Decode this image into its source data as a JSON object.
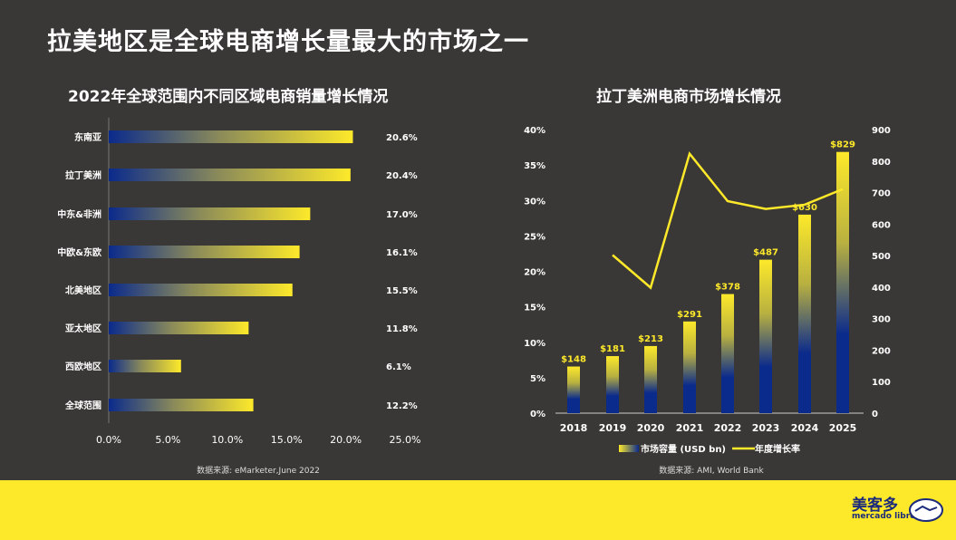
{
  "page_title": "拉美地区是全球电商增长量最大的市场之一",
  "logo": {
    "cn": "美客多",
    "en": "mercado libre"
  },
  "colors": {
    "background": "#3a3836",
    "accent_yellow": "#fde92a",
    "bar_blue": "#0a2a8c",
    "footer": "#fde92a"
  },
  "chart_data": [
    {
      "type": "bar",
      "orientation": "horizontal",
      "title": "2022年全球范围内不同区域电商销量增长情况",
      "categories": [
        "东南亚",
        "拉丁美洲",
        "中东&非洲",
        "中欧&东欧",
        "北美地区",
        "亚太地区",
        "西欧地区",
        "全球范围"
      ],
      "values": [
        20.6,
        20.4,
        17.0,
        16.1,
        15.5,
        11.8,
        6.1,
        12.2
      ],
      "value_labels": [
        "20.6%",
        "20.4%",
        "17.0%",
        "16.1%",
        "15.5%",
        "11.8%",
        "6.1%",
        "12.2%"
      ],
      "xlim": [
        0,
        25
      ],
      "xticks": [
        "0.0%",
        "5.0%",
        "10.0%",
        "15.0%",
        "20.0%",
        "25.0%"
      ],
      "source": "数据来源: eMarketer,June 2022"
    },
    {
      "type": "bar+line",
      "title": "拉丁美洲电商市场增长情况",
      "categories": [
        "2018",
        "2019",
        "2020",
        "2021",
        "2022",
        "2023",
        "2024",
        "2025"
      ],
      "series": [
        {
          "name": "市场容量 (USD bn)",
          "type": "bar",
          "axis": "right",
          "values": [
            148,
            181,
            213,
            291,
            378,
            487,
            630,
            829
          ],
          "labels": [
            "$148",
            "$181",
            "$213",
            "$291",
            "$378",
            "$487",
            "$630",
            "$829"
          ]
        },
        {
          "name": "年度增长率",
          "type": "line",
          "axis": "left",
          "values": [
            null,
            22.3,
            17.7,
            36.6,
            29.9,
            28.8,
            29.4,
            31.6
          ]
        }
      ],
      "left_axis": {
        "ylim": [
          0,
          40
        ],
        "ticks": [
          "0%",
          "5%",
          "10%",
          "15%",
          "20%",
          "25%",
          "30%",
          "35%",
          "40%"
        ]
      },
      "right_axis": {
        "ylim": [
          0,
          900
        ],
        "ticks": [
          "0",
          "100",
          "200",
          "300",
          "400",
          "500",
          "600",
          "700",
          "800",
          "900"
        ]
      },
      "legend": "bottom",
      "source": "数据来源: AMI, World Bank"
    }
  ]
}
